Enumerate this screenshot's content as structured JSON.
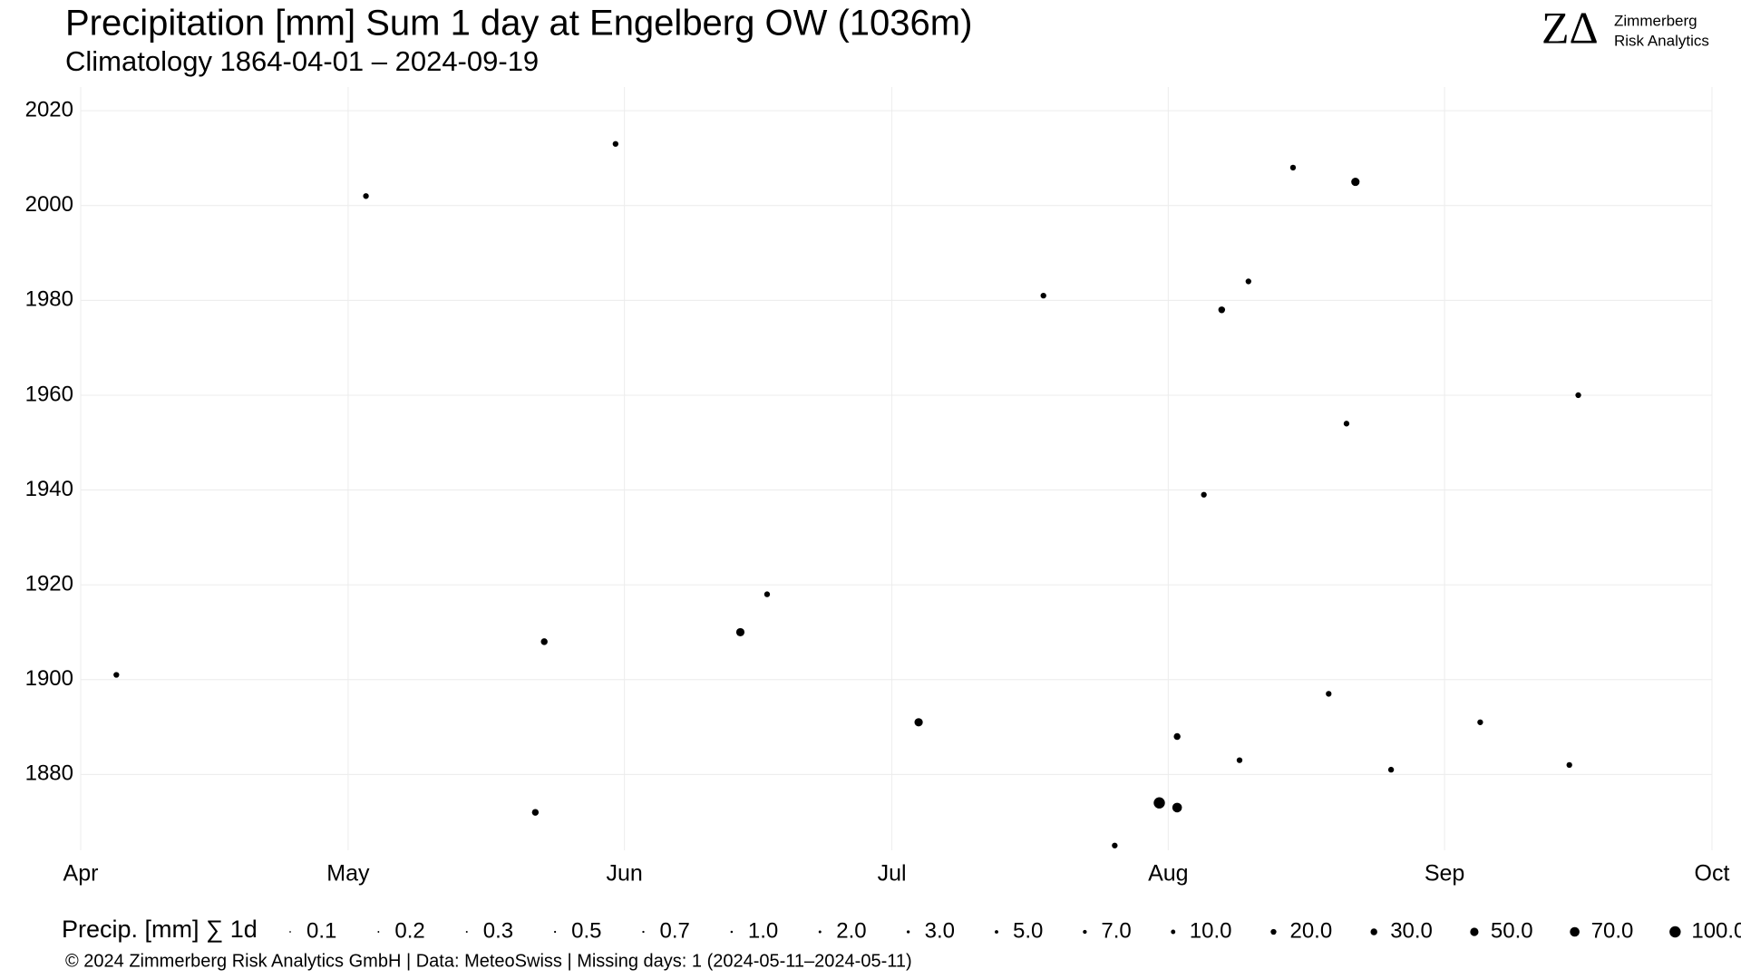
{
  "chart_data": {
    "type": "scatter",
    "title": "Precipitation [mm] Sum 1 day at Engelberg  OW (1036m)",
    "subtitle": "Climatology 1864-04-01 – 2024-09-19",
    "caption": "©  2024 Zimmerberg Risk Analytics GmbH | Data: MeteoSwiss | Missing days: 1 (2024-05-11–2024-05-11)",
    "logo": {
      "mark": "ZΔ",
      "name": "Zimmerberg",
      "tagline": "Risk Analytics"
    },
    "color": "#000000",
    "grid": true,
    "xlim": [
      0,
      183
    ],
    "xticks": [
      {
        "value": 0,
        "label": "Apr"
      },
      {
        "value": 30,
        "label": "May"
      },
      {
        "value": 61,
        "label": "Jun"
      },
      {
        "value": 91,
        "label": "Jul"
      },
      {
        "value": 122,
        "label": "Aug"
      },
      {
        "value": 153,
        "label": "Sep"
      },
      {
        "value": 183,
        "label": "Oct"
      }
    ],
    "ylim": [
      1864,
      2025
    ],
    "yticks": [
      1880,
      1900,
      1920,
      1940,
      1960,
      1980,
      2000,
      2020
    ],
    "x": [
      121,
      123,
      143,
      74,
      94,
      52,
      51,
      128,
      123,
      147,
      32,
      77,
      142,
      168,
      126,
      131,
      140,
      167,
      116,
      60,
      4,
      108,
      136,
      157,
      130
    ],
    "y": [
      1874,
      1873,
      2005,
      1910,
      1891,
      1908,
      1872,
      1978,
      1888,
      1881,
      2002,
      1918,
      1954,
      1960,
      1939,
      1984,
      1897,
      1882,
      1865,
      2013,
      1901,
      1981,
      2008,
      1891,
      1883
    ],
    "sizes": [
      100,
      70,
      50,
      50,
      50,
      30,
      30,
      30,
      30,
      20,
      20,
      20,
      20,
      20,
      20,
      20,
      20,
      20,
      20,
      20,
      20,
      20,
      20,
      20,
      20
    ],
    "size_legend": {
      "title": "Precip. [mm] ∑ 1d",
      "values": [
        0.1,
        0.2,
        0.3,
        0.5,
        0.7,
        {
          "value": 1,
          "label": "1.0"
        },
        {
          "value": 2,
          "label": "2.0"
        },
        {
          "value": 3,
          "label": "3.0"
        },
        {
          "value": 5,
          "label": "5.0"
        },
        {
          "value": 7,
          "label": "7.0"
        },
        {
          "value": 10,
          "label": "10.0"
        },
        {
          "value": 20,
          "label": "20.0"
        },
        {
          "value": 30,
          "label": "30.0"
        },
        {
          "value": 50,
          "label": "50.0"
        },
        {
          "value": 70,
          "label": "70.0"
        },
        {
          "value": 100,
          "label": "100.0"
        }
      ]
    }
  }
}
